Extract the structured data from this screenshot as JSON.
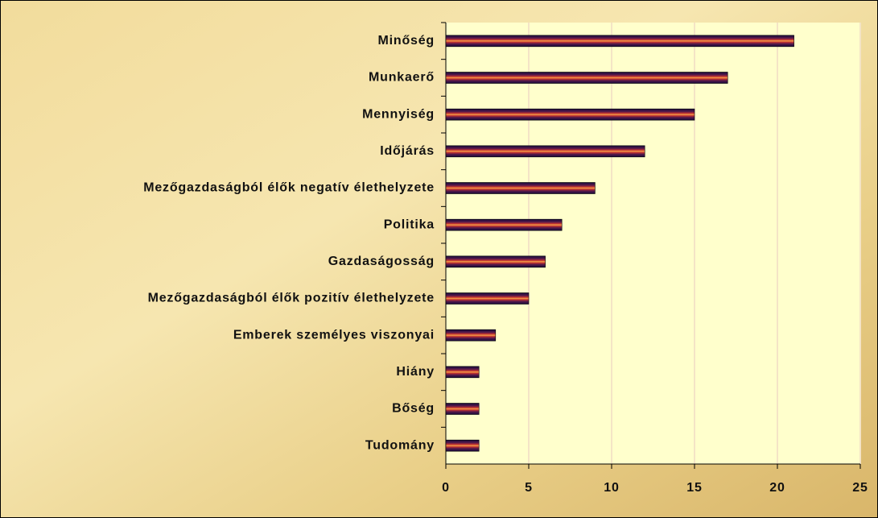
{
  "chart_data": {
    "type": "hbar",
    "categories": [
      "Minőség",
      "Munkaerő",
      "Mennyiség",
      "Időjárás",
      "Mezőgazdaságból élők negatív élethelyzete",
      "Politika",
      "Gazdaságosság",
      "Mezőgazdaságból élők pozitív élethelyzete",
      "Emberek személyes viszonyai",
      "Hiány",
      "Bőség",
      "Tudomány"
    ],
    "values": [
      21,
      17,
      15,
      12,
      9,
      7,
      6,
      5,
      3,
      2,
      2,
      2
    ],
    "color": "#c8352f",
    "xlim": [
      0,
      25
    ],
    "xticks": [
      0,
      5,
      10,
      15,
      20,
      25
    ],
    "grid": true
  }
}
